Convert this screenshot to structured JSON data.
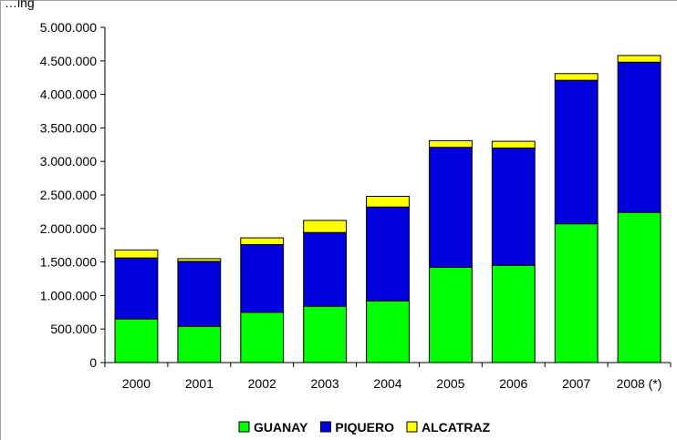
{
  "title_fragment": "…ing",
  "chart_data": {
    "type": "bar",
    "stacked": true,
    "categories": [
      "2000",
      "2001",
      "2002",
      "2003",
      "2004",
      "2005",
      "2006",
      "2007",
      "2008 (*)"
    ],
    "series": [
      {
        "name": "GUANAY",
        "color": "#00ff00",
        "values": [
          650000,
          540000,
          750000,
          840000,
          920000,
          1420000,
          1450000,
          2070000,
          2240000
        ]
      },
      {
        "name": "PIQUERO",
        "color": "#0000dd",
        "values": [
          910000,
          970000,
          1010000,
          1100000,
          1400000,
          1790000,
          1750000,
          2140000,
          2240000
        ]
      },
      {
        "name": "ALCATRAZ",
        "color": "#ffff00",
        "values": [
          120000,
          40000,
          100000,
          180000,
          160000,
          100000,
          100000,
          100000,
          100000
        ]
      }
    ],
    "ylim": [
      0,
      5000000
    ],
    "yticks": [
      "0",
      "500.000",
      "1.000.000",
      "1.500.000",
      "2.000.000",
      "2.500.000",
      "3.000.000",
      "3.500.000",
      "4.000.000",
      "4.500.000",
      "5.000.000"
    ],
    "ytick_values": [
      0,
      500000,
      1000000,
      1500000,
      2000000,
      2500000,
      3000000,
      3500000,
      4000000,
      4500000,
      5000000
    ],
    "grid": false,
    "legend_position": "bottom"
  }
}
